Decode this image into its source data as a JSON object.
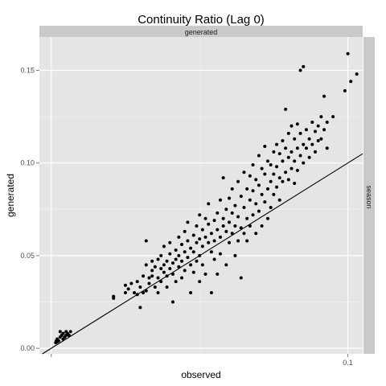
{
  "chart_data": {
    "type": "scatter",
    "title": "Continuity Ratio (Lag 0)",
    "xlabel": "observed",
    "ylabel": "generated",
    "facet_top_label": "generated",
    "facet_right_label": "season",
    "xlim": [
      -0.004,
      0.105
    ],
    "ylim": [
      -0.003,
      0.168
    ],
    "x_ticks": [
      {
        "value": 0.0,
        "label": ""
      },
      {
        "value": 0.1,
        "label": "0.1"
      }
    ],
    "y_ticks": [
      {
        "value": 0.0,
        "label": "0.00"
      },
      {
        "value": 0.05,
        "label": "0.05"
      },
      {
        "value": 0.1,
        "label": "0.10"
      },
      {
        "value": 0.15,
        "label": "0.15"
      }
    ],
    "x_minor": [
      0.05
    ],
    "y_minor": [
      0.025,
      0.075,
      0.125
    ],
    "grid": true,
    "reference_line": {
      "type": "identity",
      "intercept": 0,
      "slope": 1
    },
    "colors": {
      "panel": "#e5e5e5",
      "grid": "#ffffff",
      "grid_minor": "#f2f2f2",
      "strip": "#c9c9c9",
      "point": "#000000",
      "line": "#000000"
    },
    "points": [
      [
        0.0015,
        0.003
      ],
      [
        0.0017,
        0.004
      ],
      [
        0.002,
        0.005
      ],
      [
        0.002,
        0.0035
      ],
      [
        0.0025,
        0.004
      ],
      [
        0.003,
        0.006
      ],
      [
        0.003,
        0.009
      ],
      [
        0.0035,
        0.007
      ],
      [
        0.004,
        0.005
      ],
      [
        0.004,
        0.008
      ],
      [
        0.0045,
        0.006
      ],
      [
        0.005,
        0.007
      ],
      [
        0.005,
        0.009
      ],
      [
        0.0055,
        0.008
      ],
      [
        0.006,
        0.007
      ],
      [
        0.0065,
        0.009
      ],
      [
        0.021,
        0.028
      ],
      [
        0.021,
        0.027
      ],
      [
        0.025,
        0.03
      ],
      [
        0.025,
        0.034
      ],
      [
        0.026,
        0.032
      ],
      [
        0.027,
        0.035
      ],
      [
        0.028,
        0.03
      ],
      [
        0.029,
        0.029
      ],
      [
        0.029,
        0.036
      ],
      [
        0.03,
        0.033
      ],
      [
        0.03,
        0.022
      ],
      [
        0.031,
        0.03
      ],
      [
        0.031,
        0.039
      ],
      [
        0.032,
        0.031
      ],
      [
        0.032,
        0.045
      ],
      [
        0.032,
        0.058
      ],
      [
        0.033,
        0.038
      ],
      [
        0.033,
        0.035
      ],
      [
        0.034,
        0.042
      ],
      [
        0.034,
        0.047
      ],
      [
        0.034,
        0.039
      ],
      [
        0.035,
        0.033
      ],
      [
        0.035,
        0.044
      ],
      [
        0.036,
        0.038
      ],
      [
        0.036,
        0.048
      ],
      [
        0.036,
        0.03
      ],
      [
        0.037,
        0.043
      ],
      [
        0.037,
        0.036
      ],
      [
        0.037,
        0.05
      ],
      [
        0.038,
        0.045
      ],
      [
        0.038,
        0.041
      ],
      [
        0.038,
        0.055
      ],
      [
        0.039,
        0.047
      ],
      [
        0.039,
        0.039
      ],
      [
        0.039,
        0.033
      ],
      [
        0.04,
        0.051
      ],
      [
        0.04,
        0.043
      ],
      [
        0.04,
        0.057
      ],
      [
        0.041,
        0.046
      ],
      [
        0.041,
        0.04
      ],
      [
        0.041,
        0.025
      ],
      [
        0.042,
        0.053
      ],
      [
        0.042,
        0.048
      ],
      [
        0.042,
        0.036
      ],
      [
        0.043,
        0.06
      ],
      [
        0.043,
        0.044
      ],
      [
        0.043,
        0.05
      ],
      [
        0.044,
        0.056
      ],
      [
        0.044,
        0.047
      ],
      [
        0.044,
        0.038
      ],
      [
        0.045,
        0.063
      ],
      [
        0.045,
        0.052
      ],
      [
        0.045,
        0.042
      ],
      [
        0.046,
        0.058
      ],
      [
        0.046,
        0.049
      ],
      [
        0.046,
        0.068
      ],
      [
        0.047,
        0.054
      ],
      [
        0.047,
        0.045
      ],
      [
        0.047,
        0.03
      ],
      [
        0.048,
        0.061
      ],
      [
        0.048,
        0.052
      ],
      [
        0.048,
        0.041
      ],
      [
        0.049,
        0.066
      ],
      [
        0.049,
        0.057
      ],
      [
        0.049,
        0.047
      ],
      [
        0.05,
        0.059
      ],
      [
        0.05,
        0.072
      ],
      [
        0.05,
        0.05
      ],
      [
        0.05,
        0.036
      ],
      [
        0.051,
        0.064
      ],
      [
        0.051,
        0.055
      ],
      [
        0.051,
        0.045
      ],
      [
        0.052,
        0.07
      ],
      [
        0.052,
        0.06
      ],
      [
        0.052,
        0.04
      ],
      [
        0.053,
        0.067
      ],
      [
        0.053,
        0.057
      ],
      [
        0.053,
        0.078
      ],
      [
        0.054,
        0.062
      ],
      [
        0.054,
        0.052
      ],
      [
        0.054,
        0.03
      ],
      [
        0.055,
        0.069
      ],
      [
        0.055,
        0.058
      ],
      [
        0.055,
        0.048
      ],
      [
        0.056,
        0.073
      ],
      [
        0.056,
        0.064
      ],
      [
        0.056,
        0.04
      ],
      [
        0.057,
        0.08
      ],
      [
        0.057,
        0.06
      ],
      [
        0.057,
        0.051
      ],
      [
        0.058,
        0.07
      ],
      [
        0.058,
        0.066
      ],
      [
        0.058,
        0.092
      ],
      [
        0.059,
        0.075
      ],
      [
        0.059,
        0.063
      ],
      [
        0.059,
        0.045
      ],
      [
        0.06,
        0.081
      ],
      [
        0.06,
        0.068
      ],
      [
        0.06,
        0.057
      ],
      [
        0.061,
        0.086
      ],
      [
        0.061,
        0.073
      ],
      [
        0.061,
        0.062
      ],
      [
        0.062,
        0.077
      ],
      [
        0.062,
        0.066
      ],
      [
        0.062,
        0.05
      ],
      [
        0.063,
        0.09
      ],
      [
        0.063,
        0.071
      ],
      [
        0.063,
        0.058
      ],
      [
        0.064,
        0.082
      ],
      [
        0.064,
        0.065
      ],
      [
        0.064,
        0.038
      ],
      [
        0.065,
        0.095
      ],
      [
        0.065,
        0.076
      ],
      [
        0.065,
        0.062
      ],
      [
        0.066,
        0.086
      ],
      [
        0.066,
        0.07
      ],
      [
        0.066,
        0.058
      ],
      [
        0.067,
        0.093
      ],
      [
        0.067,
        0.08
      ],
      [
        0.067,
        0.066
      ],
      [
        0.068,
        0.099
      ],
      [
        0.068,
        0.085
      ],
      [
        0.068,
        0.072
      ],
      [
        0.069,
        0.091
      ],
      [
        0.069,
        0.078
      ],
      [
        0.069,
        0.062
      ],
      [
        0.07,
        0.104
      ],
      [
        0.07,
        0.088
      ],
      [
        0.07,
        0.074
      ],
      [
        0.071,
        0.097
      ],
      [
        0.071,
        0.083
      ],
      [
        0.071,
        0.066
      ],
      [
        0.072,
        0.109
      ],
      [
        0.072,
        0.094
      ],
      [
        0.072,
        0.079
      ],
      [
        0.073,
        0.101
      ],
      [
        0.073,
        0.086
      ],
      [
        0.073,
        0.07
      ],
      [
        0.074,
        0.099
      ],
      [
        0.074,
        0.09
      ],
      [
        0.074,
        0.076
      ],
      [
        0.075,
        0.106
      ],
      [
        0.075,
        0.094
      ],
      [
        0.075,
        0.083
      ],
      [
        0.076,
        0.11
      ],
      [
        0.076,
        0.098
      ],
      [
        0.076,
        0.087
      ],
      [
        0.077,
        0.105
      ],
      [
        0.077,
        0.092
      ],
      [
        0.077,
        0.08
      ],
      [
        0.078,
        0.112
      ],
      [
        0.078,
        0.101
      ],
      [
        0.078,
        0.09
      ],
      [
        0.079,
        0.129
      ],
      [
        0.079,
        0.108
      ],
      [
        0.079,
        0.095
      ],
      [
        0.08,
        0.116
      ],
      [
        0.08,
        0.103
      ],
      [
        0.08,
        0.091
      ],
      [
        0.081,
        0.12
      ],
      [
        0.081,
        0.106
      ],
      [
        0.081,
        0.097
      ],
      [
        0.082,
        0.113
      ],
      [
        0.082,
        0.101
      ],
      [
        0.082,
        0.089
      ],
      [
        0.083,
        0.121
      ],
      [
        0.083,
        0.108
      ],
      [
        0.083,
        0.096
      ],
      [
        0.084,
        0.116
      ],
      [
        0.084,
        0.104
      ],
      [
        0.084,
        0.15
      ],
      [
        0.085,
        0.11
      ],
      [
        0.085,
        0.1
      ],
      [
        0.085,
        0.152
      ],
      [
        0.086,
        0.118
      ],
      [
        0.086,
        0.108
      ],
      [
        0.087,
        0.113
      ],
      [
        0.087,
        0.103
      ],
      [
        0.088,
        0.122
      ],
      [
        0.088,
        0.11
      ],
      [
        0.089,
        0.117
      ],
      [
        0.089,
        0.106
      ],
      [
        0.09,
        0.12
      ],
      [
        0.09,
        0.112
      ],
      [
        0.091,
        0.125
      ],
      [
        0.091,
        0.113
      ],
      [
        0.092,
        0.118
      ],
      [
        0.092,
        0.136
      ],
      [
        0.093,
        0.122
      ],
      [
        0.093,
        0.108
      ],
      [
        0.095,
        0.125
      ],
      [
        0.099,
        0.139
      ],
      [
        0.1,
        0.159
      ],
      [
        0.101,
        0.144
      ],
      [
        0.103,
        0.148
      ]
    ]
  }
}
